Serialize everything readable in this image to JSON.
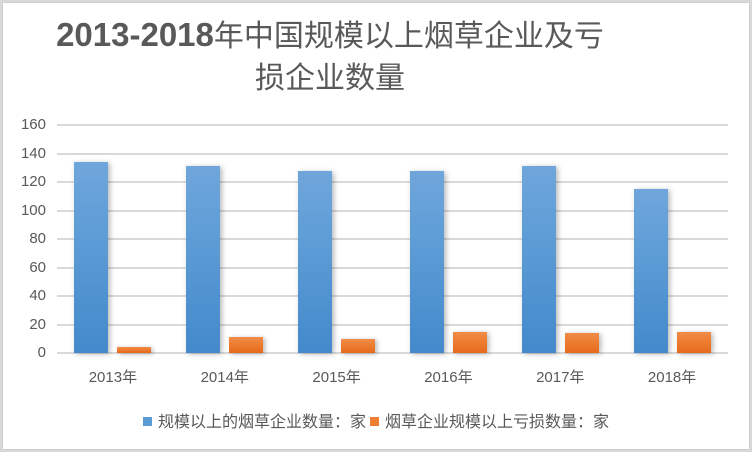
{
  "chart_data": {
    "type": "bar",
    "title": "2013-2018年中国规模以上烟草企业及亏损企业数量",
    "title_lines": [
      "2013-2018",
      "年中国规模以上烟草企业及亏",
      "损企业数量"
    ],
    "xlabel": "",
    "ylabel": "",
    "ylim": [
      0,
      160
    ],
    "yticks": [
      "0",
      "20",
      "40",
      "60",
      "80",
      "100",
      "120",
      "140",
      "160"
    ],
    "categories": [
      "2013年",
      "2014年",
      "2015年",
      "2016年",
      "2017年",
      "2018年"
    ],
    "series": [
      {
        "name": "规模以上的烟草企业数量：家",
        "color": "#5b9bd5",
        "values": [
          134,
          131,
          128,
          128,
          131,
          115
        ]
      },
      {
        "name": "烟草企业规模以上亏损数量：家",
        "color": "#ed7d31",
        "values": [
          4,
          11,
          10,
          15,
          14,
          15
        ]
      }
    ],
    "grid": true,
    "legend_position": "bottom"
  }
}
